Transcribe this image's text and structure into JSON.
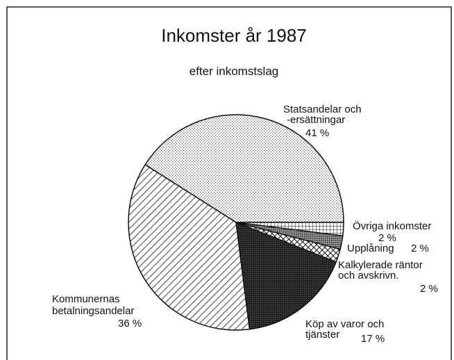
{
  "chart_data": {
    "type": "pie",
    "title": "Inkomster år 1987",
    "subtitle": "efter inkomstslag",
    "categories": [
      [
        "Statsandelar och",
        "-ersättningar"
      ],
      [
        "Övriga inkomster"
      ],
      [
        "Upplåning"
      ],
      [
        "Kalkylerade räntor",
        "och avskrivn."
      ],
      [
        "Köp av varor och",
        "tjänster"
      ],
      [
        "Kommunernas",
        "betalningsandelar"
      ]
    ],
    "values": [
      41,
      2,
      2,
      2,
      17,
      36
    ],
    "value_labels": [
      "41 %",
      "2 %",
      "2 %",
      "2 %",
      "17 %",
      "36 %"
    ],
    "colors": [
      "#e4e4e4",
      "#f4f4f4",
      "#777777",
      "#cfcfcf",
      "#262626",
      "#bdbdbd"
    ]
  }
}
